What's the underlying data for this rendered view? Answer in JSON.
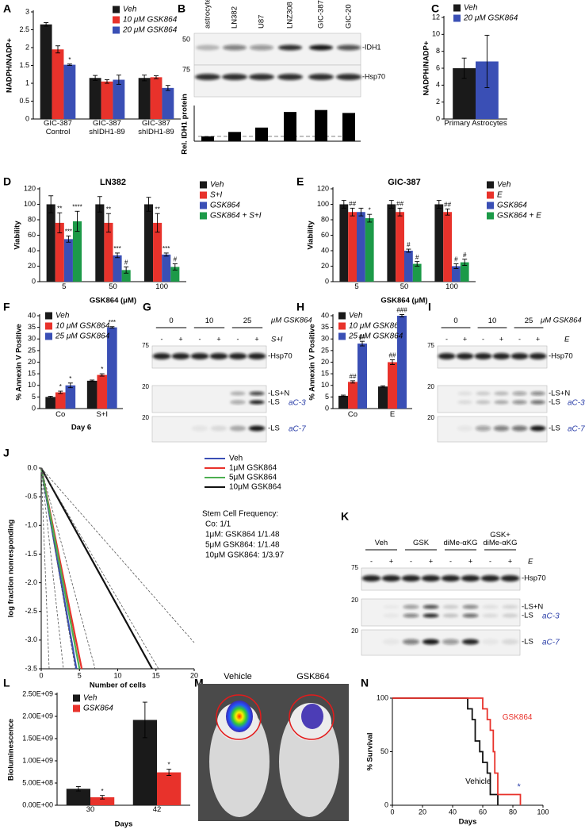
{
  "chart_data": [
    {
      "panel": "A",
      "type": "bar",
      "ylabel": "NADPH/NADP+",
      "categories": [
        "GIC-387 Control",
        "GIC-387 shIDH1-89",
        "GIC-387 shIDH1-89"
      ],
      "ylim": [
        0,
        3
      ],
      "yticks": [
        0,
        0.5,
        1,
        1.5,
        2,
        2.5,
        3
      ],
      "series": [
        {
          "name": "Veh",
          "color": "#1a1a1a",
          "values": [
            2.65,
            1.15,
            1.15
          ],
          "errors": [
            0.05,
            0.07,
            0.08
          ]
        },
        {
          "name": "10 μM GSK864",
          "color": "#e8322b",
          "values": [
            1.95,
            1.05,
            1.17
          ],
          "errors": [
            0.1,
            0.05,
            0.04
          ]
        },
        {
          "name": "20 μM GSK864",
          "color": "#3a4fb5",
          "values": [
            1.52,
            1.1,
            0.87
          ],
          "errors": [
            0.02,
            0.13,
            0.07
          ],
          "marks": [
            "*",
            null,
            null
          ]
        }
      ]
    },
    {
      "panel": "B",
      "type": "bar",
      "ylabel": "Rel. IDH1 protein",
      "categories": [
        "astrocytes",
        "LN382",
        "U87",
        "LNZ308",
        "GIC-387",
        "GIC-20"
      ],
      "values": [
        1,
        1.9,
        2.8,
        6,
        6.4,
        5.8
      ],
      "color": "#000000",
      "ylim": [
        0,
        7
      ],
      "reference_line": 1
    },
    {
      "panel": "C",
      "type": "bar",
      "ylabel": "NADPH/NADP+",
      "categories": [
        "Primary Astrocytes"
      ],
      "ylim": [
        0,
        12
      ],
      "yticks": [
        0,
        2,
        4,
        6,
        8,
        10,
        12
      ],
      "series": [
        {
          "name": "Veh",
          "color": "#1a1a1a",
          "values": [
            6
          ],
          "errors": [
            1.2
          ]
        },
        {
          "name": "20 μM GSK864",
          "color": "#3a4fb5",
          "values": [
            6.8
          ],
          "errors": [
            3.1
          ]
        }
      ]
    },
    {
      "panel": "D",
      "type": "bar",
      "title": "LN382",
      "ylabel": "Viability",
      "xlabel": "GSK864 (μM)",
      "categories": [
        "5",
        "50",
        "100"
      ],
      "ylim": [
        0,
        120
      ],
      "yticks": [
        0,
        20,
        40,
        60,
        80,
        100,
        120
      ],
      "series": [
        {
          "name": "Veh",
          "color": "#1a1a1a",
          "values": [
            100,
            100,
            100
          ],
          "errors": [
            11,
            10,
            9
          ]
        },
        {
          "name": "S+I",
          "color": "#e8322b",
          "values": [
            76,
            76,
            76
          ],
          "errors": [
            13,
            12,
            12
          ],
          "marks": [
            "**",
            "**",
            "**"
          ]
        },
        {
          "name": "GSK864",
          "color": "#3a4fb5",
          "values": [
            55,
            34,
            35
          ],
          "errors": [
            4,
            3,
            2
          ],
          "marks": [
            "***",
            "***",
            "***"
          ]
        },
        {
          "name": "GSK864 + S+I",
          "color": "#1c9a48",
          "values": [
            78,
            15,
            19
          ],
          "errors": [
            13,
            4,
            4
          ],
          "marks": [
            "****",
            "#",
            "#"
          ]
        }
      ]
    },
    {
      "panel": "E",
      "type": "bar",
      "title": "GIC-387",
      "ylabel": "Viability",
      "xlabel": "GSK864 (μM)",
      "categories": [
        "5",
        "50",
        "100"
      ],
      "ylim": [
        0,
        120
      ],
      "yticks": [
        0,
        20,
        40,
        60,
        80,
        100,
        120
      ],
      "series": [
        {
          "name": "Veh",
          "color": "#1a1a1a",
          "values": [
            100,
            100,
            100
          ],
          "errors": [
            5,
            5,
            5
          ]
        },
        {
          "name": "E",
          "color": "#e8322b",
          "values": [
            90,
            90,
            90
          ],
          "errors": [
            5,
            5,
            4
          ],
          "marks": [
            "##",
            "##",
            "##"
          ]
        },
        {
          "name": "GSK864",
          "color": "#3a4fb5",
          "values": [
            90,
            40,
            20
          ],
          "errors": [
            5,
            2,
            3
          ],
          "marks": [
            null,
            "#",
            "#"
          ]
        },
        {
          "name": "GSK864 + E",
          "color": "#1c9a48",
          "values": [
            82,
            23,
            25
          ],
          "errors": [
            5,
            3,
            4
          ],
          "marks": [
            "*",
            "#",
            "#"
          ]
        }
      ]
    },
    {
      "panel": "F",
      "type": "bar",
      "ylabel": "% Annexin V Positive",
      "xlabel": "Day 6",
      "categories": [
        "Co",
        "S+I"
      ],
      "ylim": [
        0,
        40
      ],
      "yticks": [
        0,
        5,
        10,
        15,
        20,
        25,
        30,
        35,
        40
      ],
      "series": [
        {
          "name": "Veh",
          "color": "#1a1a1a",
          "values": [
            5,
            12
          ],
          "errors": [
            0.3,
            0.3
          ]
        },
        {
          "name": "10 μM GSK864",
          "color": "#e8322b",
          "values": [
            7,
            14.5
          ],
          "errors": [
            0.5,
            0.5
          ],
          "marks": [
            "*",
            "*"
          ]
        },
        {
          "name": "25 μM GSK864",
          "color": "#3a4fb5",
          "values": [
            10,
            35
          ],
          "errors": [
            1,
            0.3
          ],
          "marks": [
            "*",
            "***"
          ]
        }
      ]
    },
    {
      "panel": "H",
      "type": "bar",
      "ylabel": "% Annexin V Positive",
      "categories": [
        "Co",
        "E"
      ],
      "ylim": [
        0,
        40
      ],
      "yticks": [
        0,
        5,
        10,
        15,
        20,
        25,
        30,
        35,
        40
      ],
      "series": [
        {
          "name": "Veh",
          "color": "#1a1a1a",
          "values": [
            5.5,
            9.5
          ],
          "errors": [
            0.3,
            0.3
          ]
        },
        {
          "name": "10 μM GSK864",
          "color": "#e8322b",
          "values": [
            11.5,
            20
          ],
          "errors": [
            0.5,
            1
          ],
          "marks": [
            "##",
            "##"
          ]
        },
        {
          "name": "25 μM GSK864",
          "color": "#3a4fb5",
          "values": [
            28,
            40
          ],
          "errors": [
            1,
            0.5
          ],
          "marks": [
            "##",
            "###"
          ]
        }
      ]
    },
    {
      "panel": "J",
      "type": "line",
      "ylabel": "log fraction nonresponding",
      "xlabel": "Number of cells",
      "xlim": [
        0,
        20
      ],
      "xticks": [
        0,
        5,
        10,
        15,
        20
      ],
      "ylim": [
        -3.5,
        0
      ],
      "yticks": [
        {
          "value": 0,
          "label": "0.0"
        },
        -0.5,
        {
          "value": -1,
          "label": "-1.0"
        },
        -1.5,
        {
          "value": -2,
          "label": "-2.0"
        },
        -2.5,
        {
          "value": -3,
          "label": "-3.0"
        },
        -3.5
      ],
      "series": [
        {
          "name": "Veh",
          "color": "#3a4fb5",
          "x": [
            0,
            4.6
          ],
          "values": [
            0,
            -3.5
          ]
        },
        {
          "name": "1μM GSK864",
          "color": "#e8322b",
          "x": [
            0,
            5.3
          ],
          "values": [
            0,
            -3.5
          ]
        },
        {
          "name": "5μM GSK864",
          "color": "#4caf50",
          "x": [
            0,
            5
          ],
          "values": [
            0,
            -3.5
          ]
        },
        {
          "name": "10μM GSK864",
          "color": "#111111",
          "x": [
            0,
            14.5
          ],
          "values": [
            0,
            -3.5
          ]
        }
      ],
      "notes": [
        "Stem Cell Frequency:",
        "Co: 1/1",
        "1μM: GSK864 1/1.48",
        "5μM GSK864: 1/1.48",
        "10μM GSK864: 1/3.97"
      ]
    },
    {
      "panel": "L",
      "type": "bar",
      "ylabel": "Bioluminescence",
      "xlabel": "Days",
      "categories": [
        "30",
        "42"
      ],
      "ylim": [
        0,
        2500000000
      ],
      "yticks": [
        {
          "value": 0,
          "label": "0.00E+00"
        },
        {
          "value": 500000000,
          "label": "5.00E+08"
        },
        {
          "value": 1000000000,
          "label": "1.00E+09"
        },
        {
          "value": 1500000000,
          "label": "1.50E+09"
        },
        {
          "value": 2000000000,
          "label": "2.00E+09"
        },
        {
          "value": 2500000000,
          "label": "2.50E+09"
        }
      ],
      "series": [
        {
          "name": "Veh",
          "color": "#1a1a1a",
          "values": [
            370000000,
            1920000000
          ],
          "errors": [
            50000000,
            400000000
          ]
        },
        {
          "name": "GSK864",
          "color": "#e8322b",
          "values": [
            180000000,
            740000000
          ],
          "errors": [
            40000000,
            70000000
          ],
          "marks": [
            "*",
            "*"
          ]
        }
      ]
    },
    {
      "panel": "N",
      "type": "line",
      "ylabel": "% Survival",
      "xlabel": "Days",
      "xlim": [
        0,
        100
      ],
      "xticks": [
        0,
        20,
        40,
        60,
        80,
        100
      ],
      "ylim": [
        0,
        100
      ],
      "yticks": [
        0,
        50,
        100
      ],
      "series": [
        {
          "name": "Vehicle",
          "color": "#111111",
          "x": [
            0,
            50,
            50,
            53,
            53,
            55,
            55,
            58,
            58,
            60,
            60,
            63,
            63,
            65,
            65,
            70,
            70
          ],
          "values": [
            100,
            100,
            90,
            90,
            80,
            80,
            60,
            60,
            50,
            50,
            40,
            40,
            30,
            30,
            10,
            10,
            0
          ]
        },
        {
          "name": "GSK864",
          "color": "#e8322b",
          "x": [
            0,
            60,
            60,
            63,
            63,
            65,
            65,
            67,
            67,
            68,
            68,
            70,
            70,
            85,
            85
          ],
          "values": [
            100,
            100,
            90,
            90,
            80,
            80,
            70,
            70,
            50,
            50,
            30,
            30,
            10,
            10,
            0
          ]
        }
      ],
      "annotation": "*"
    }
  ],
  "blots": {
    "B": {
      "markers": [
        "50",
        "75"
      ],
      "bands": [
        "-IDH1",
        "-Hsp70"
      ]
    },
    "G": {
      "panel": "G",
      "doses": [
        "0",
        "10",
        "25"
      ],
      "dose_unit": "μM GSK864",
      "treatment": "S+I",
      "signs": [
        "-",
        "+",
        "-",
        "+",
        "-",
        "+"
      ],
      "markers": [
        "75",
        "20",
        "20"
      ],
      "bands": [
        "-Hsp70",
        "-LS+N",
        "-LS",
        "-LS"
      ],
      "antibodies": [
        "aC-3",
        "aC-7"
      ]
    },
    "I": {
      "panel": "I",
      "doses": [
        "0",
        "10",
        "25"
      ],
      "dose_unit": "μM GSK864",
      "treatment": "E",
      "signs": [
        "-",
        "+",
        "-",
        "+",
        "-",
        "+"
      ],
      "markers": [
        "75",
        "20",
        "20"
      ],
      "bands": [
        "-Hsp70",
        "-LS+N",
        "-LS",
        "-LS"
      ],
      "antibodies": [
        "aC-3",
        "aC-7"
      ]
    },
    "K": {
      "panel": "K",
      "doses": [
        "Veh",
        "GSK",
        "diMe-αKG",
        "GSK+ diMe-αKG"
      ],
      "treatment": "E",
      "signs": [
        "-",
        "+",
        "-",
        "+",
        "-",
        "+",
        "-",
        "+"
      ],
      "markers": [
        "75",
        "20",
        "20"
      ],
      "bands": [
        "-Hsp70",
        "-LS+N",
        "-LS",
        "-LS"
      ],
      "antibodies": [
        "aC-3",
        "aC-7"
      ]
    }
  },
  "images": {
    "M": {
      "panel": "M",
      "labels": [
        "Vehicle",
        "GSK864"
      ]
    }
  }
}
